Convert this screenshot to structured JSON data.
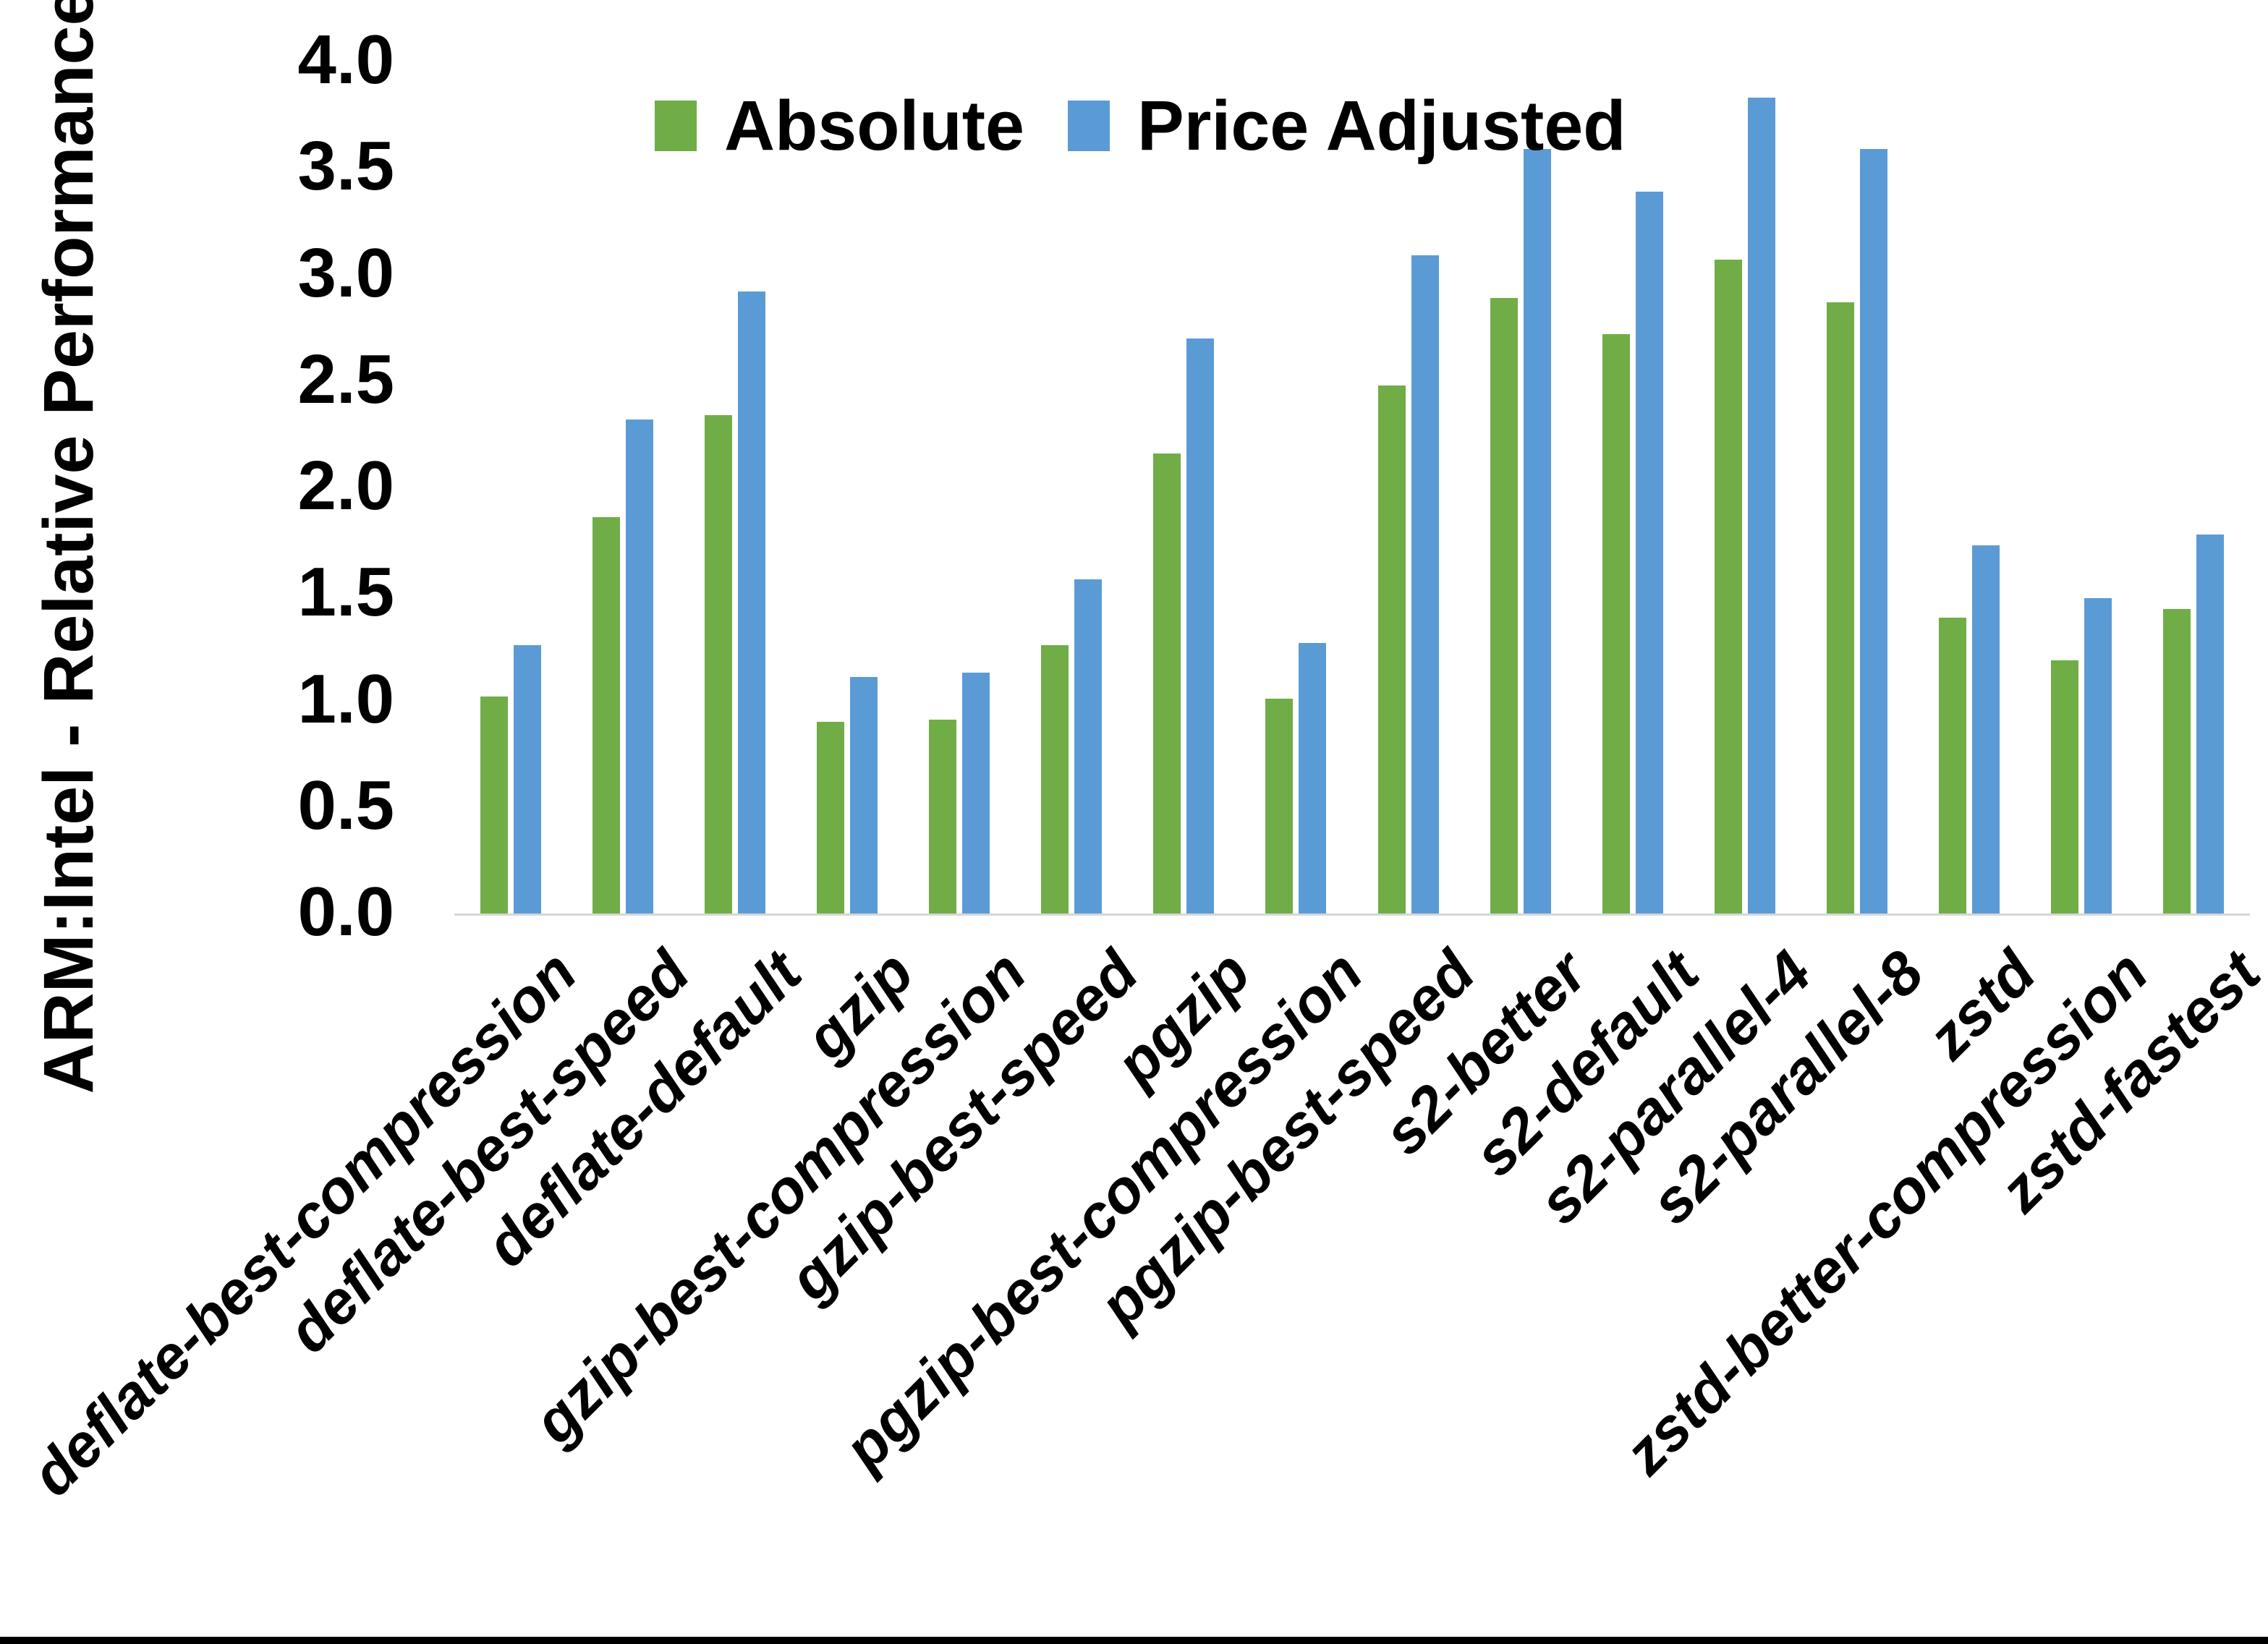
{
  "page": {
    "background": "#ffffff",
    "bottom_bar_color": "#000000"
  },
  "chart_data": {
    "type": "bar",
    "title": "",
    "xlabel": "",
    "ylabel": "ARM:Intel - Relative Performance",
    "ylim": [
      0.0,
      4.0
    ],
    "ytick_step": 0.5,
    "ytick_labels": [
      "0.0",
      "0.5",
      "1.0",
      "1.5",
      "2.0",
      "2.5",
      "3.0",
      "3.5",
      "4.0"
    ],
    "grid": false,
    "legend_position": "top-center",
    "x_label_rotation_deg": -45,
    "axis_line_color": "#d6d6d6",
    "categories": [
      "deflate-best-compression",
      "deflate-best-speed",
      "deflate-default",
      "gzip",
      "gzip-best-compression",
      "gzip-best-speed",
      "pgzip",
      "pgzip-best-compression",
      "pgzip-best-speed",
      "s2-better",
      "s2-default",
      "s2-parallel-4",
      "s2-parallel-8",
      "zstd",
      "zstd-better-compression",
      "zstd-fastest"
    ],
    "series": [
      {
        "name": "Absolute",
        "color": "#70AD47",
        "values": [
          1.02,
          1.86,
          2.34,
          0.9,
          0.91,
          1.26,
          2.16,
          1.01,
          2.48,
          2.89,
          2.72,
          3.07,
          2.87,
          1.39,
          1.19,
          1.43
        ]
      },
      {
        "name": "Price Adjusted",
        "color": "#5B9BD5",
        "values": [
          1.26,
          2.32,
          2.92,
          1.11,
          1.13,
          1.57,
          2.7,
          1.27,
          3.09,
          3.59,
          3.39,
          3.83,
          3.59,
          1.73,
          1.48,
          1.78
        ]
      }
    ]
  }
}
